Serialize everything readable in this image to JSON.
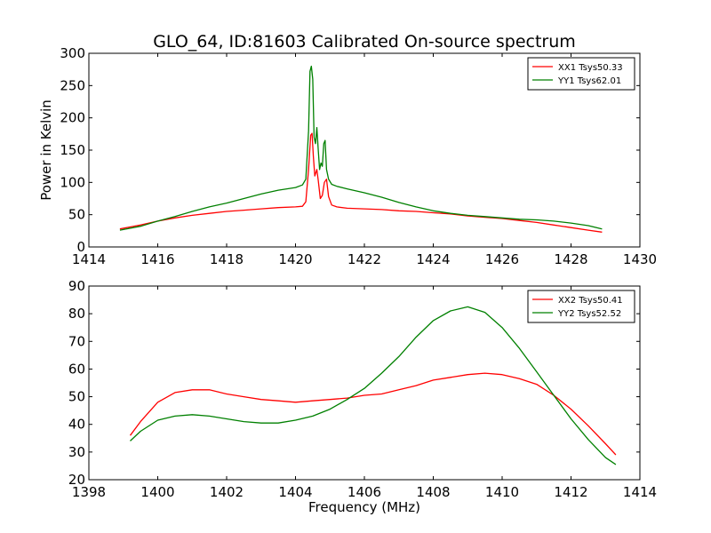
{
  "figure": {
    "title": "GLO_64, ID:81603 Calibrated On-source spectrum"
  },
  "chart_data": [
    {
      "type": "line",
      "title": "GLO_64, ID:81603 Calibrated On-source spectrum",
      "xlabel": "",
      "ylabel": "Power in Kelvin",
      "xlim": [
        1414,
        1430
      ],
      "ylim": [
        0,
        300
      ],
      "xticks": [
        1414,
        1416,
        1418,
        1420,
        1422,
        1424,
        1426,
        1428,
        1430
      ],
      "yticks": [
        0,
        50,
        100,
        150,
        200,
        250,
        300
      ],
      "grid": false,
      "legend_position": "top-right",
      "series": [
        {
          "name": "XX1 Tsys50.33",
          "color": "#ff0000",
          "x": [
            1414.9,
            1415.5,
            1416,
            1416.5,
            1417,
            1417.5,
            1418,
            1418.5,
            1419,
            1419.5,
            1420,
            1420.2,
            1420.3,
            1420.38,
            1420.44,
            1420.48,
            1420.52,
            1420.56,
            1420.62,
            1420.66,
            1420.72,
            1420.78,
            1420.84,
            1420.9,
            1420.96,
            1421.05,
            1421.2,
            1421.5,
            1422,
            1422.5,
            1423,
            1423.5,
            1424,
            1424.5,
            1425,
            1425.5,
            1426,
            1426.5,
            1427,
            1427.5,
            1428,
            1428.5,
            1428.9
          ],
          "y": [
            28,
            34,
            40,
            45,
            49,
            52,
            55,
            57,
            59,
            61,
            62,
            63,
            70,
            120,
            173,
            176,
            140,
            110,
            120,
            103,
            75,
            80,
            100,
            105,
            78,
            65,
            62,
            60,
            59,
            58,
            56,
            55,
            53,
            51,
            48,
            46,
            44,
            41,
            38,
            34,
            30,
            26,
            23
          ]
        },
        {
          "name": "YY1 Tsys62.01",
          "color": "#008000",
          "x": [
            1414.9,
            1415.5,
            1416,
            1416.5,
            1417,
            1417.5,
            1418,
            1418.5,
            1419,
            1419.5,
            1420,
            1420.2,
            1420.3,
            1420.38,
            1420.42,
            1420.46,
            1420.5,
            1420.54,
            1420.58,
            1420.62,
            1420.66,
            1420.7,
            1420.74,
            1420.78,
            1420.82,
            1420.86,
            1420.9,
            1420.96,
            1421.05,
            1421.2,
            1421.5,
            1422,
            1422.5,
            1423,
            1423.5,
            1424,
            1424.5,
            1425,
            1425.5,
            1426,
            1426.5,
            1427,
            1427.5,
            1428,
            1428.5,
            1428.9
          ],
          "y": [
            26,
            32,
            40,
            47,
            55,
            62,
            68,
            75,
            82,
            88,
            92,
            96,
            105,
            180,
            272,
            280,
            260,
            170,
            160,
            185,
            150,
            120,
            130,
            125,
            160,
            165,
            120,
            105,
            97,
            94,
            90,
            84,
            77,
            69,
            62,
            56,
            52,
            49,
            47,
            45,
            43,
            42,
            40,
            37,
            33,
            28
          ]
        }
      ]
    },
    {
      "type": "line",
      "title": "",
      "xlabel": "Frequency (MHz)",
      "ylabel": "",
      "xlim": [
        1398,
        1414
      ],
      "ylim": [
        20,
        90
      ],
      "xticks": [
        1398,
        1400,
        1402,
        1404,
        1406,
        1408,
        1410,
        1412,
        1414
      ],
      "yticks": [
        20,
        30,
        40,
        50,
        60,
        70,
        80,
        90
      ],
      "grid": false,
      "legend_position": "top-right",
      "series": [
        {
          "name": "XX2 Tsys50.41",
          "color": "#ff0000",
          "x": [
            1399.2,
            1399.5,
            1400,
            1400.5,
            1401,
            1401.5,
            1402,
            1402.5,
            1403,
            1403.5,
            1404,
            1404.5,
            1405,
            1405.5,
            1406,
            1406.5,
            1407,
            1407.5,
            1408,
            1408.5,
            1409,
            1409.5,
            1410,
            1410.5,
            1411,
            1411.5,
            1412,
            1412.5,
            1413,
            1413.3
          ],
          "y": [
            36,
            41,
            48,
            51.5,
            52.5,
            52.5,
            51,
            50,
            49,
            48.5,
            48,
            48.5,
            49,
            49.5,
            50.5,
            51,
            52.5,
            54,
            56,
            57,
            58,
            58.5,
            58,
            56.5,
            54.5,
            50.5,
            45.5,
            39.5,
            33,
            29
          ]
        },
        {
          "name": "YY2 Tsys52.52",
          "color": "#008000",
          "x": [
            1399.2,
            1399.5,
            1400,
            1400.5,
            1401,
            1401.5,
            1402,
            1402.5,
            1403,
            1403.5,
            1404,
            1404.5,
            1405,
            1405.5,
            1406,
            1406.5,
            1407,
            1407.5,
            1408,
            1408.5,
            1409,
            1409.5,
            1410,
            1410.5,
            1411,
            1411.5,
            1412,
            1412.5,
            1413,
            1413.3
          ],
          "y": [
            34,
            37.5,
            41.5,
            43,
            43.5,
            43,
            42,
            41,
            40.5,
            40.5,
            41.5,
            43,
            45.5,
            49,
            53,
            58.5,
            64.5,
            71.5,
            77.5,
            81,
            82.5,
            80.5,
            75,
            67.5,
            59,
            50.5,
            42,
            34.5,
            28,
            25.5
          ]
        }
      ]
    }
  ]
}
